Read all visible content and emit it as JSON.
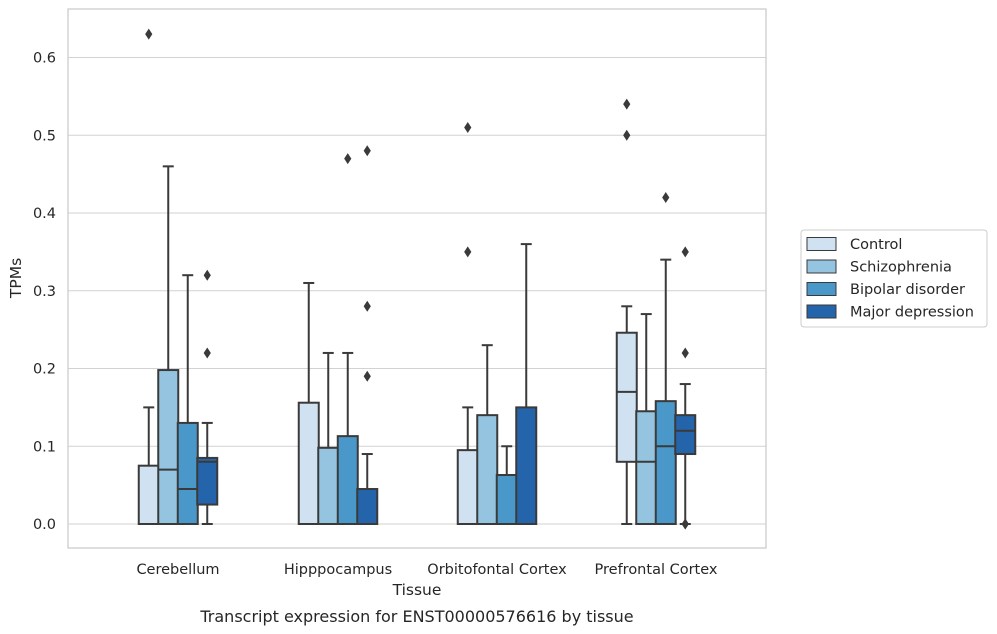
{
  "caption": "Transcript expression for ENST00000576616 by tissue",
  "chart_data": {
    "type": "box",
    "title": "",
    "xlabel": "Tissue",
    "ylabel": "TPMs",
    "ylim": [
      -0.03,
      0.66
    ],
    "yticks": [
      0.0,
      0.1,
      0.2,
      0.3,
      0.4,
      0.5,
      0.6
    ],
    "ytick_labels": [
      "0.0",
      "0.1",
      "0.2",
      "0.3",
      "0.4",
      "0.5",
      "0.6"
    ],
    "grid": "horizontal",
    "legend_position": "right",
    "categories": [
      "Cerebellum",
      "Hipppocampus",
      "Orbitofontal Cortex",
      "Prefrontal Cortex"
    ],
    "series": [
      {
        "name": "Control",
        "color": "#d0e1f2",
        "boxes": [
          {
            "whislo": 0.0,
            "q1": 0.0,
            "median": 0.0,
            "q3": 0.075,
            "whishi": 0.15,
            "fliers": [
              0.63
            ]
          },
          {
            "whislo": 0.0,
            "q1": 0.0,
            "median": 0.0,
            "q3": 0.156,
            "whishi": 0.31,
            "fliers": []
          },
          {
            "whislo": 0.0,
            "q1": 0.0,
            "median": 0.0,
            "q3": 0.095,
            "whishi": 0.15,
            "fliers": [
              0.35,
              0.51
            ]
          },
          {
            "whislo": 0.0,
            "q1": 0.08,
            "median": 0.17,
            "q3": 0.246,
            "whishi": 0.28,
            "fliers": [
              0.5,
              0.54
            ]
          }
        ]
      },
      {
        "name": "Schizophrenia",
        "color": "#94c4df",
        "boxes": [
          {
            "whislo": 0.0,
            "q1": 0.0,
            "median": 0.07,
            "q3": 0.198,
            "whishi": 0.46,
            "fliers": []
          },
          {
            "whislo": 0.0,
            "q1": 0.0,
            "median": 0.0,
            "q3": 0.098,
            "whishi": 0.22,
            "fliers": []
          },
          {
            "whislo": 0.0,
            "q1": 0.0,
            "median": 0.0,
            "q3": 0.14,
            "whishi": 0.23,
            "fliers": []
          },
          {
            "whislo": 0.0,
            "q1": 0.0,
            "median": 0.08,
            "q3": 0.145,
            "whishi": 0.27,
            "fliers": []
          }
        ]
      },
      {
        "name": "Bipolar disorder",
        "color": "#4a98c9",
        "boxes": [
          {
            "whislo": 0.0,
            "q1": 0.0,
            "median": 0.045,
            "q3": 0.13,
            "whishi": 0.32,
            "fliers": []
          },
          {
            "whislo": 0.0,
            "q1": 0.0,
            "median": 0.0,
            "q3": 0.113,
            "whishi": 0.22,
            "fliers": [
              0.47
            ]
          },
          {
            "whislo": 0.0,
            "q1": 0.0,
            "median": 0.0,
            "q3": 0.063,
            "whishi": 0.1,
            "fliers": []
          },
          {
            "whislo": 0.0,
            "q1": 0.0,
            "median": 0.1,
            "q3": 0.158,
            "whishi": 0.34,
            "fliers": [
              0.42
            ]
          }
        ]
      },
      {
        "name": "Major depression",
        "color": "#2464ab",
        "boxes": [
          {
            "whislo": 0.0,
            "q1": 0.025,
            "median": 0.08,
            "q3": 0.085,
            "whishi": 0.13,
            "fliers": [
              0.22,
              0.32
            ]
          },
          {
            "whislo": 0.0,
            "q1": 0.0,
            "median": 0.0,
            "q3": 0.045,
            "whishi": 0.09,
            "fliers": [
              0.19,
              0.28,
              0.48
            ]
          },
          {
            "whislo": 0.0,
            "q1": 0.0,
            "median": 0.0,
            "q3": 0.15,
            "whishi": 0.36,
            "fliers": []
          },
          {
            "whislo": 0.0,
            "q1": 0.09,
            "median": 0.12,
            "q3": 0.14,
            "whishi": 0.18,
            "fliers": [
              0.0,
              0.0,
              0.22,
              0.35
            ]
          }
        ]
      }
    ]
  }
}
